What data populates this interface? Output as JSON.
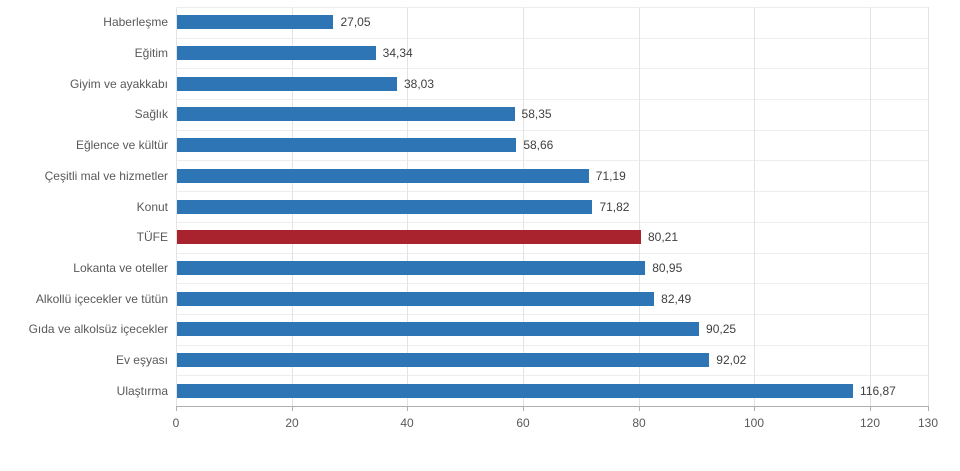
{
  "chart_data": {
    "type": "bar",
    "orientation": "horizontal",
    "title": "",
    "xlabel": "",
    "ylabel": "",
    "xlim": [
      0,
      130
    ],
    "x_ticks": [
      0,
      20,
      40,
      60,
      80,
      100,
      120,
      130
    ],
    "grid": true,
    "legend": "none",
    "categories": [
      "Haberleşme",
      "Eğitim",
      "Giyim ve ayakkabı",
      "Sağlık",
      "Eğlence ve kültür",
      "Çeşitli mal ve hizmetler",
      "Konut",
      "TÜFE",
      "Lokanta ve oteller",
      "Alkollü içecekler ve tütün",
      "Gıda ve alkolsüz içecekler",
      "Ev eşyası",
      "Ulaştırma"
    ],
    "values": [
      27.05,
      34.34,
      38.03,
      58.35,
      58.66,
      71.19,
      71.82,
      80.21,
      80.95,
      82.49,
      90.25,
      92.02,
      116.87
    ],
    "value_labels": [
      "27,05",
      "34,34",
      "38,03",
      "58,35",
      "58,66",
      "71,19",
      "71,82",
      "80,21",
      "80,95",
      "82,49",
      "90,25",
      "92,02",
      "116,87"
    ],
    "highlight_category": "TÜFE",
    "colors": {
      "bar": "#2e75b6",
      "highlight": "#a8232d"
    }
  }
}
